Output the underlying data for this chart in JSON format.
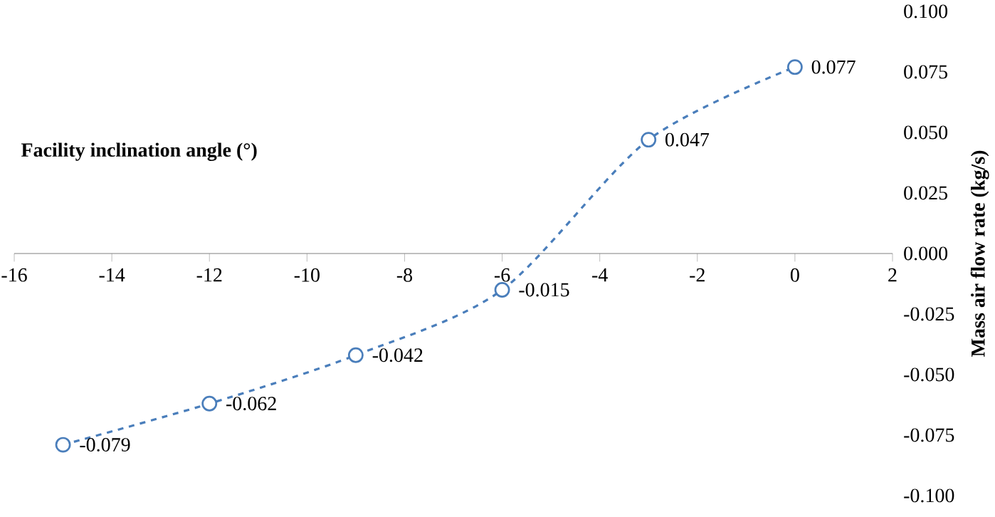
{
  "chart_data": {
    "type": "line",
    "xlabel": "Facility inclination angle (°)",
    "ylabel": "Mass air flow rate (kg/s)",
    "x": [
      -15,
      -12,
      -9,
      -6,
      -3,
      0
    ],
    "series": [
      {
        "color": "#4a7ebb",
        "values": [
          -0.079,
          -0.062,
          -0.042,
          -0.015,
          0.047,
          0.077
        ],
        "value_labels": [
          "-0.079",
          "-0.062",
          "-0.042",
          "-0.015",
          "0.047",
          "0.077"
        ]
      }
    ],
    "xlim": [
      -16,
      2
    ],
    "xticks": [
      -16,
      -14,
      -12,
      -10,
      -8,
      -6,
      -4,
      -2,
      0,
      2
    ],
    "ylim": [
      -0.1,
      0.1
    ],
    "yticks": [
      {
        "value": -0.1,
        "label": "-0.100"
      },
      {
        "value": -0.075,
        "label": "-0.075"
      },
      {
        "value": -0.05,
        "label": "-0.050"
      },
      {
        "value": -0.025,
        "label": "-0.025"
      },
      {
        "value": 0,
        "label": "0.000"
      },
      {
        "value": 0.025,
        "label": "0.025"
      },
      {
        "value": 0.05,
        "label": "0.050"
      },
      {
        "value": 0.075,
        "label": "0.075"
      },
      {
        "value": 0.1,
        "label": "0.100"
      }
    ],
    "marker": "circle",
    "line_style": "dashed"
  }
}
